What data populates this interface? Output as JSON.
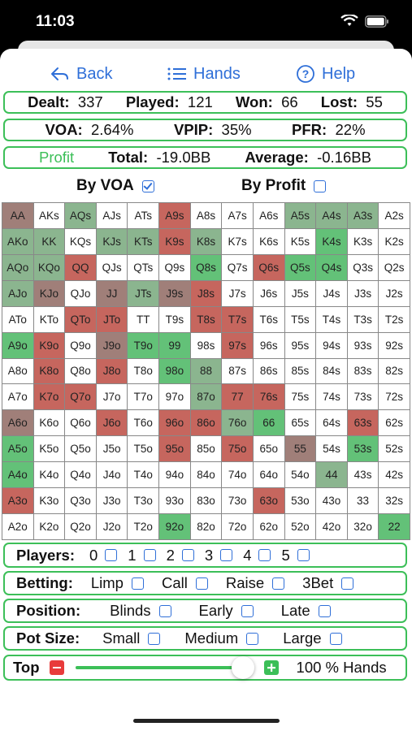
{
  "status": {
    "time": "11:03"
  },
  "nav": {
    "back": "Back",
    "hands": "Hands",
    "help": "Help"
  },
  "stats": {
    "dealt_label": "Dealt:",
    "dealt": "337",
    "played_label": "Played:",
    "played": "121",
    "won_label": "Won:",
    "won": "66",
    "lost_label": "Lost:",
    "lost": "55",
    "voa_label": "VOA:",
    "voa": "2.64%",
    "vpip_label": "VPIP:",
    "vpip": "35%",
    "pfr_label": "PFR:",
    "pfr": "22%",
    "profit_label": "Profit",
    "total_label": "Total:",
    "total": "-19.0BB",
    "average_label": "Average:",
    "average": "-0.16BB"
  },
  "sort": {
    "by_voa": "By VOA",
    "by_voa_checked": true,
    "by_profit": "By Profit",
    "by_profit_checked": false
  },
  "colors": {
    "accent": "#2f6fd8",
    "border": "#3cbf58",
    "profit": "#3cbf58",
    "loss_cell": "#c6665e",
    "win_cell": "#63c178"
  },
  "grid_rows": [
    [
      [
        "AA",
        "m"
      ],
      [
        "AKs",
        ""
      ],
      [
        "AQs",
        "s"
      ],
      [
        "AJs",
        ""
      ],
      [
        "ATs",
        ""
      ],
      [
        "A9s",
        "r"
      ],
      [
        "A8s",
        ""
      ],
      [
        "A7s",
        ""
      ],
      [
        "A6s",
        ""
      ],
      [
        "A5s",
        "s"
      ],
      [
        "A4s",
        "s"
      ],
      [
        "A3s",
        "s"
      ],
      [
        "A2s",
        ""
      ]
    ],
    [
      [
        "AKo",
        "s"
      ],
      [
        "KK",
        "s"
      ],
      [
        "KQs",
        ""
      ],
      [
        "KJs",
        "s"
      ],
      [
        "KTs",
        "s"
      ],
      [
        "K9s",
        "r"
      ],
      [
        "K8s",
        "s"
      ],
      [
        "K7s",
        ""
      ],
      [
        "K6s",
        ""
      ],
      [
        "K5s",
        ""
      ],
      [
        "K4s",
        "g"
      ],
      [
        "K3s",
        ""
      ],
      [
        "K2s",
        ""
      ]
    ],
    [
      [
        "AQo",
        "s"
      ],
      [
        "KQo",
        "s"
      ],
      [
        "QQ",
        "r"
      ],
      [
        "QJs",
        ""
      ],
      [
        "QTs",
        ""
      ],
      [
        "Q9s",
        ""
      ],
      [
        "Q8s",
        "g"
      ],
      [
        "Q7s",
        ""
      ],
      [
        "Q6s",
        "r"
      ],
      [
        "Q5s",
        "g"
      ],
      [
        "Q4s",
        "g"
      ],
      [
        "Q3s",
        ""
      ],
      [
        "Q2s",
        ""
      ]
    ],
    [
      [
        "AJo",
        "s"
      ],
      [
        "KJo",
        "m"
      ],
      [
        "QJo",
        ""
      ],
      [
        "JJ",
        "m"
      ],
      [
        "JTs",
        "s"
      ],
      [
        "J9s",
        "m"
      ],
      [
        "J8s",
        "r"
      ],
      [
        "J7s",
        ""
      ],
      [
        "J6s",
        ""
      ],
      [
        "J5s",
        ""
      ],
      [
        "J4s",
        ""
      ],
      [
        "J3s",
        ""
      ],
      [
        "J2s",
        ""
      ]
    ],
    [
      [
        "ATo",
        ""
      ],
      [
        "KTo",
        ""
      ],
      [
        "QTo",
        "r"
      ],
      [
        "JTo",
        "r"
      ],
      [
        "TT",
        ""
      ],
      [
        "T9s",
        ""
      ],
      [
        "T8s",
        "r"
      ],
      [
        "T7s",
        "r"
      ],
      [
        "T6s",
        ""
      ],
      [
        "T5s",
        ""
      ],
      [
        "T4s",
        ""
      ],
      [
        "T3s",
        ""
      ],
      [
        "T2s",
        ""
      ]
    ],
    [
      [
        "A9o",
        "g"
      ],
      [
        "K9o",
        "r"
      ],
      [
        "Q9o",
        ""
      ],
      [
        "J9o",
        "m"
      ],
      [
        "T9o",
        "g"
      ],
      [
        "99",
        "g"
      ],
      [
        "98s",
        ""
      ],
      [
        "97s",
        "r"
      ],
      [
        "96s",
        ""
      ],
      [
        "95s",
        ""
      ],
      [
        "94s",
        ""
      ],
      [
        "93s",
        ""
      ],
      [
        "92s",
        ""
      ]
    ],
    [
      [
        "A8o",
        ""
      ],
      [
        "K8o",
        "r"
      ],
      [
        "Q8o",
        ""
      ],
      [
        "J8o",
        "r"
      ],
      [
        "T8o",
        ""
      ],
      [
        "98o",
        "g"
      ],
      [
        "88",
        "s"
      ],
      [
        "87s",
        ""
      ],
      [
        "86s",
        ""
      ],
      [
        "85s",
        ""
      ],
      [
        "84s",
        ""
      ],
      [
        "83s",
        ""
      ],
      [
        "82s",
        ""
      ]
    ],
    [
      [
        "A7o",
        ""
      ],
      [
        "K7o",
        "r"
      ],
      [
        "Q7o",
        "r"
      ],
      [
        "J7o",
        ""
      ],
      [
        "T7o",
        ""
      ],
      [
        "97o",
        ""
      ],
      [
        "87o",
        "s"
      ],
      [
        "77",
        "r"
      ],
      [
        "76s",
        "r"
      ],
      [
        "75s",
        ""
      ],
      [
        "74s",
        ""
      ],
      [
        "73s",
        ""
      ],
      [
        "72s",
        ""
      ]
    ],
    [
      [
        "A6o",
        "m"
      ],
      [
        "K6o",
        ""
      ],
      [
        "Q6o",
        ""
      ],
      [
        "J6o",
        "r"
      ],
      [
        "T6o",
        ""
      ],
      [
        "96o",
        "r"
      ],
      [
        "86o",
        "r"
      ],
      [
        "76o",
        "s"
      ],
      [
        "66",
        "g"
      ],
      [
        "65s",
        ""
      ],
      [
        "64s",
        ""
      ],
      [
        "63s",
        "r"
      ],
      [
        "62s",
        ""
      ]
    ],
    [
      [
        "A5o",
        "g"
      ],
      [
        "K5o",
        ""
      ],
      [
        "Q5o",
        ""
      ],
      [
        "J5o",
        ""
      ],
      [
        "T5o",
        ""
      ],
      [
        "95o",
        "r"
      ],
      [
        "85o",
        ""
      ],
      [
        "75o",
        "r"
      ],
      [
        "65o",
        ""
      ],
      [
        "55",
        "m"
      ],
      [
        "54s",
        ""
      ],
      [
        "53s",
        "g"
      ],
      [
        "52s",
        ""
      ]
    ],
    [
      [
        "A4o",
        "g"
      ],
      [
        "K4o",
        ""
      ],
      [
        "Q4o",
        ""
      ],
      [
        "J4o",
        ""
      ],
      [
        "T4o",
        ""
      ],
      [
        "94o",
        ""
      ],
      [
        "84o",
        ""
      ],
      [
        "74o",
        ""
      ],
      [
        "64o",
        ""
      ],
      [
        "54o",
        ""
      ],
      [
        "44",
        "s"
      ],
      [
        "43s",
        ""
      ],
      [
        "42s",
        ""
      ]
    ],
    [
      [
        "A3o",
        "r"
      ],
      [
        "K3o",
        ""
      ],
      [
        "Q3o",
        ""
      ],
      [
        "J3o",
        ""
      ],
      [
        "T3o",
        ""
      ],
      [
        "93o",
        ""
      ],
      [
        "83o",
        ""
      ],
      [
        "73o",
        ""
      ],
      [
        "63o",
        "r"
      ],
      [
        "53o",
        ""
      ],
      [
        "43o",
        ""
      ],
      [
        "33",
        ""
      ],
      [
        "32s",
        ""
      ]
    ],
    [
      [
        "A2o",
        ""
      ],
      [
        "K2o",
        ""
      ],
      [
        "Q2o",
        ""
      ],
      [
        "J2o",
        ""
      ],
      [
        "T2o",
        ""
      ],
      [
        "92o",
        "g"
      ],
      [
        "82o",
        ""
      ],
      [
        "72o",
        ""
      ],
      [
        "62o",
        ""
      ],
      [
        "52o",
        ""
      ],
      [
        "42o",
        ""
      ],
      [
        "32o",
        ""
      ],
      [
        "22",
        "g"
      ]
    ]
  ],
  "players": {
    "label": "Players:",
    "options": [
      "0",
      "1",
      "2",
      "3",
      "4",
      "5"
    ]
  },
  "betting": {
    "label": "Betting:",
    "options": [
      "Limp",
      "Call",
      "Raise",
      "3Bet"
    ]
  },
  "position": {
    "label": "Position:",
    "options": [
      "Blinds",
      "Early",
      "Late"
    ]
  },
  "potsize": {
    "label": "Pot Size:",
    "options": [
      "Small",
      "Medium",
      "Large"
    ]
  },
  "top": {
    "label": "Top",
    "value_text": "100 % Hands",
    "slider_fraction": 1.0
  }
}
